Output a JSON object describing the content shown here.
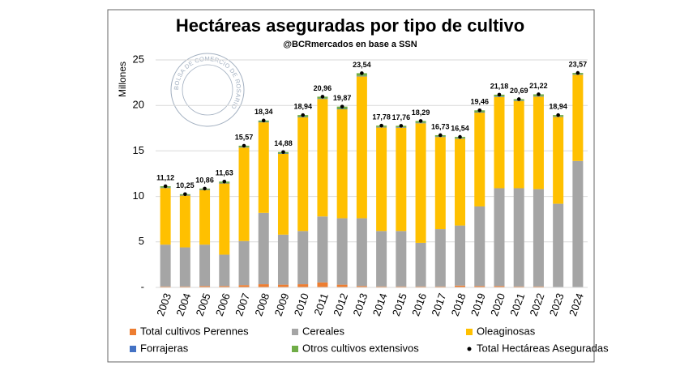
{
  "chart_data": {
    "type": "bar",
    "stacked": true,
    "title": "Hectáreas aseguradas por tipo de cultivo",
    "subtitle": "@BCRmercados en base a SSN",
    "y_label": "Millones",
    "watermark": "BOLSA DE COMERCIO DE ROSARIO",
    "categories": [
      "2003",
      "2004",
      "2005",
      "2006",
      "2007",
      "2008",
      "2009",
      "2010",
      "2011",
      "2012",
      "2013",
      "2014",
      "2015",
      "2016",
      "2017",
      "2018",
      "2019",
      "2020",
      "2021",
      "2022",
      "2023",
      "2024"
    ],
    "ylim": [
      0,
      25
    ],
    "yticks": [
      {
        "value": 0,
        "label": "-"
      },
      5,
      10,
      15,
      20,
      25
    ],
    "grid": true,
    "legend": "bottom",
    "series": [
      {
        "name": "Total cultivos Perennes",
        "color": "#ed7d31",
        "values": [
          0.1,
          0.1,
          0.15,
          0.15,
          0.25,
          0.35,
          0.3,
          0.35,
          0.55,
          0.3,
          0.15,
          0.1,
          0.1,
          0.1,
          0.1,
          0.2,
          0.15,
          0.15,
          0.1,
          0.1,
          0.05,
          0.05
        ]
      },
      {
        "name": "Cereales",
        "color": "#a5a5a5",
        "values": [
          4.6,
          4.3,
          4.55,
          3.45,
          4.85,
          7.85,
          5.5,
          5.85,
          7.25,
          7.3,
          7.45,
          6.1,
          6.1,
          4.8,
          6.3,
          6.6,
          8.75,
          10.75,
          10.8,
          10.7,
          9.15,
          13.85
        ]
      },
      {
        "name": "Oleaginosas",
        "color": "#ffc000",
        "values": [
          6.22,
          5.7,
          6.01,
          7.83,
          10.27,
          9.94,
          8.88,
          12.49,
          12.91,
          11.97,
          15.59,
          11.38,
          11.36,
          13.14,
          10.13,
          9.54,
          10.31,
          10.03,
          9.59,
          10.17,
          9.54,
          9.47
        ]
      },
      {
        "name": "Forrajeras",
        "color": "#4472c4",
        "values": [
          0.05,
          0.05,
          0.05,
          0.05,
          0.05,
          0.05,
          0.05,
          0.05,
          0.05,
          0.05,
          0.05,
          0.05,
          0.05,
          0.05,
          0.05,
          0.05,
          0.05,
          0.05,
          0.05,
          0.05,
          0.05,
          0.05
        ]
      },
      {
        "name": "Otros cultivos extensivos",
        "color": "#70ad47",
        "values": [
          0.15,
          0.1,
          0.1,
          0.15,
          0.15,
          0.15,
          0.15,
          0.2,
          0.2,
          0.25,
          0.3,
          0.15,
          0.15,
          0.2,
          0.15,
          0.15,
          0.2,
          0.2,
          0.15,
          0.2,
          0.15,
          0.15
        ]
      },
      {
        "name": "Total Hectáreas Aseguradas",
        "type": "scatter",
        "color": "#000000",
        "values": [
          11.12,
          10.25,
          10.86,
          11.63,
          15.57,
          18.34,
          14.88,
          18.94,
          20.96,
          19.87,
          23.54,
          17.78,
          17.76,
          18.29,
          16.73,
          16.54,
          19.46,
          21.18,
          20.69,
          21.22,
          18.94,
          23.57
        ],
        "value_labels": [
          "11,12",
          "10,25",
          "10,86",
          "11,63",
          "15,57",
          "18,34",
          "14,88",
          "18,94",
          "20,96",
          "19,87",
          "23,54",
          "17,78",
          "17,76",
          "18,29",
          "16,73",
          "16,54",
          "19,46",
          "21,18",
          "20,69",
          "21,22",
          "18,94",
          "23,57"
        ]
      }
    ]
  }
}
